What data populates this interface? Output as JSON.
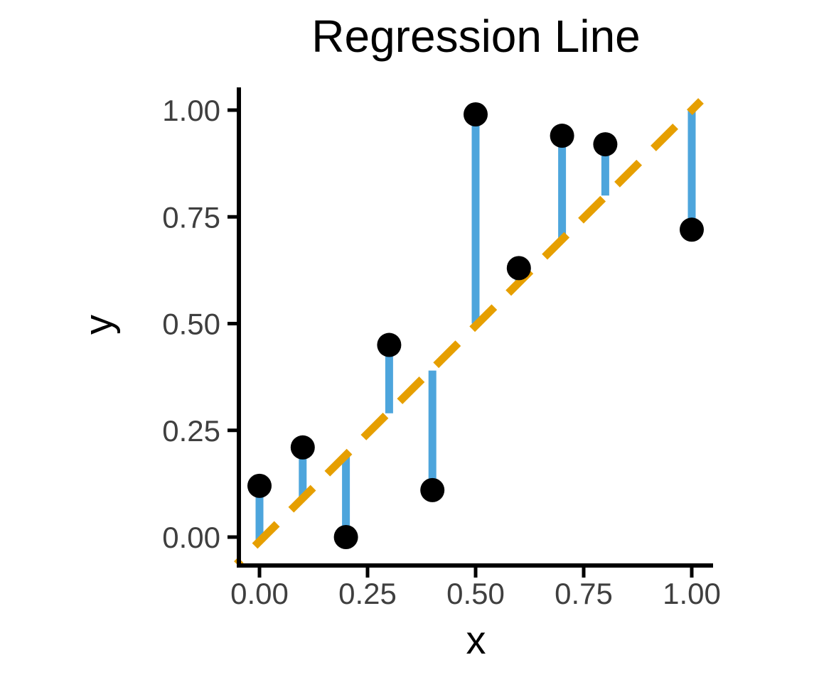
{
  "figure": {
    "background": "#FFFFFF"
  },
  "chart_data": {
    "type": "scatter",
    "title": "Regression Line",
    "xlabel": "x",
    "ylabel": "y",
    "xlim": [
      0,
      1
    ],
    "ylim": [
      0,
      1
    ],
    "grid": false,
    "legend": false,
    "x_ticks": {
      "values": [
        0,
        0.25,
        0.5,
        0.75,
        1.0
      ],
      "labels": [
        "0.00",
        "0.25",
        "0.50",
        "0.75",
        "1.00"
      ]
    },
    "y_ticks": {
      "values": [
        0,
        0.25,
        0.5,
        0.75,
        1.0
      ],
      "labels": [
        "0.00",
        "0.25",
        "0.50",
        "0.75",
        "1.00"
      ]
    },
    "points": [
      {
        "x": 0.0,
        "y": 0.12,
        "fitted": -0.01
      },
      {
        "x": 0.1,
        "y": 0.21,
        "fitted": 0.09
      },
      {
        "x": 0.2,
        "y": 0.0,
        "fitted": 0.19
      },
      {
        "x": 0.3,
        "y": 0.45,
        "fitted": 0.29
      },
      {
        "x": 0.4,
        "y": 0.11,
        "fitted": 0.39
      },
      {
        "x": 0.5,
        "y": 0.99,
        "fitted": 0.5
      },
      {
        "x": 0.6,
        "y": 0.63,
        "fitted": 0.6
      },
      {
        "x": 0.7,
        "y": 0.94,
        "fitted": 0.7
      },
      {
        "x": 0.8,
        "y": 0.92,
        "fitted": 0.8
      },
      {
        "x": 1.0,
        "y": 0.72,
        "fitted": 1.0
      }
    ],
    "regression_line": {
      "slope": 1.01,
      "intercept": -0.01,
      "style": "dashed",
      "color": "#E69F00"
    },
    "residual_segment_color": "#4DA5DC",
    "point_color": "#000000",
    "axis_color": "#000000",
    "tick_text_color": "#3F3F3F"
  }
}
